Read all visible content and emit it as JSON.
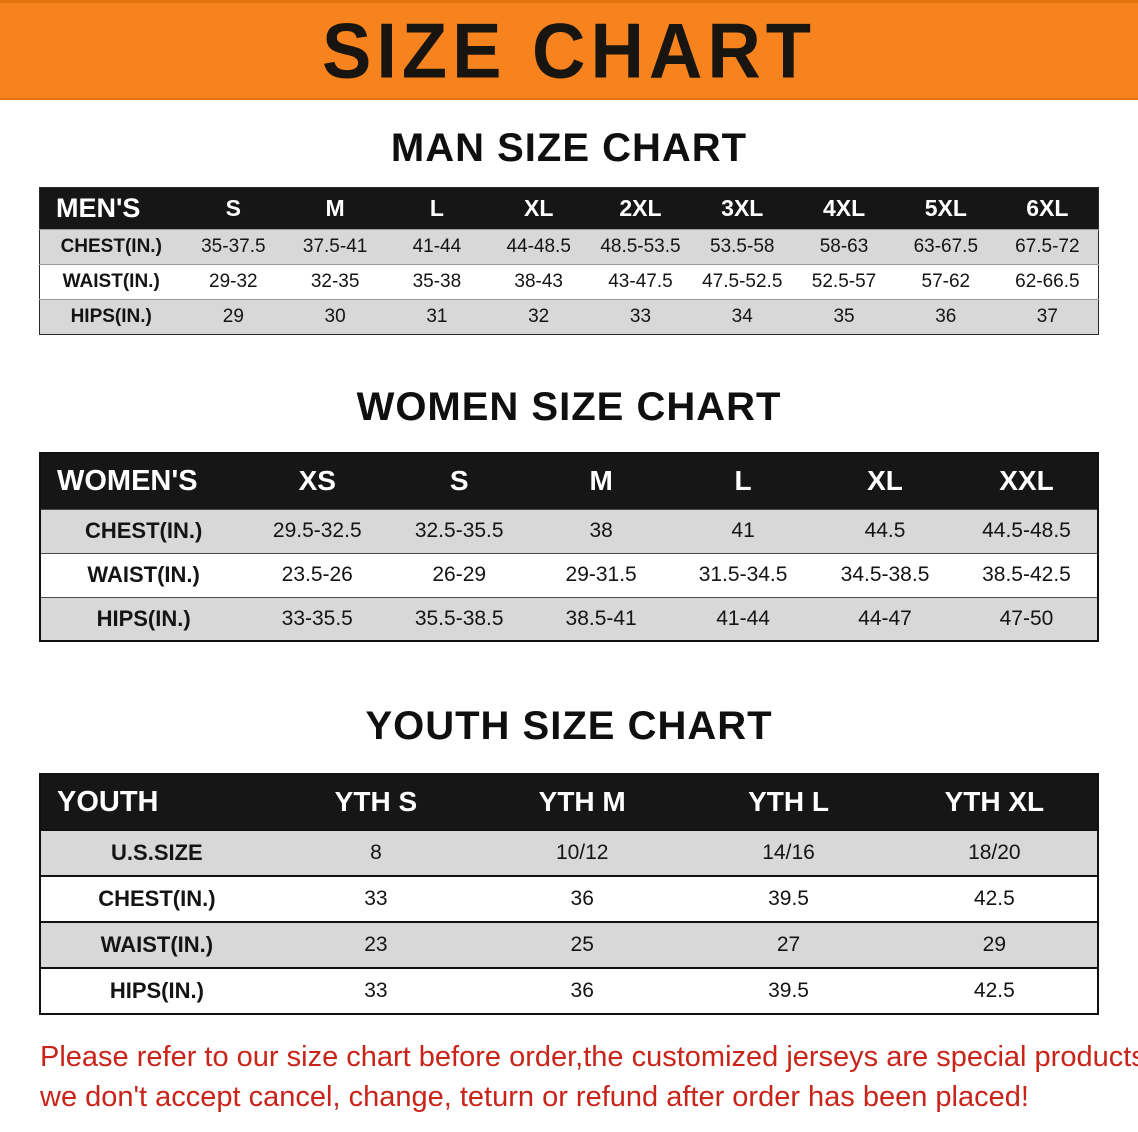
{
  "banner": {
    "title": "SIZE CHART"
  },
  "sections": [
    {
      "title": "MAN SIZE CHART",
      "table": {
        "header": [
          "MEN'S",
          "S",
          "M",
          "L",
          "XL",
          "2XL",
          "3XL",
          "4XL",
          "5XL",
          "6XL"
        ],
        "rows": [
          [
            "CHEST(IN.)",
            "35-37.5",
            "37.5-41",
            "41-44",
            "44-48.5",
            "48.5-53.5",
            "53.5-58",
            "58-63",
            "63-67.5",
            "67.5-72"
          ],
          [
            "WAIST(IN.)",
            "29-32",
            "32-35",
            "35-38",
            "38-43",
            "43-47.5",
            "47.5-52.5",
            "52.5-57",
            "57-62",
            "62-66.5"
          ],
          [
            "HIPS(IN.)",
            "29",
            "30",
            "31",
            "32",
            "33",
            "34",
            "35",
            "36",
            "37"
          ]
        ]
      }
    },
    {
      "title": "WOMEN SIZE CHART",
      "table": {
        "header": [
          "WOMEN'S",
          "XS",
          "S",
          "M",
          "L",
          "XL",
          "XXL"
        ],
        "rows": [
          [
            "CHEST(IN.)",
            "29.5-32.5",
            "32.5-35.5",
            "38",
            "41",
            "44.5",
            "44.5-48.5"
          ],
          [
            "WAIST(IN.)",
            "23.5-26",
            "26-29",
            "29-31.5",
            "31.5-34.5",
            "34.5-38.5",
            "38.5-42.5"
          ],
          [
            "HIPS(IN.)",
            "33-35.5",
            "35.5-38.5",
            "38.5-41",
            "41-44",
            "44-47",
            "47-50"
          ]
        ]
      }
    },
    {
      "title": "YOUTH SIZE CHART",
      "table": {
        "header": [
          "YOUTH",
          "YTH S",
          "YTH M",
          "YTH L",
          "YTH XL"
        ],
        "rows": [
          [
            "U.S.SIZE",
            "8",
            "10/12",
            "14/16",
            "18/20"
          ],
          [
            "CHEST(IN.)",
            "33",
            "36",
            "39.5",
            "42.5"
          ],
          [
            "WAIST(IN.)",
            "23",
            "25",
            "27",
            "29"
          ],
          [
            "HIPS(IN.)",
            "33",
            "36",
            "39.5",
            "42.5"
          ]
        ]
      }
    }
  ],
  "footer": {
    "line1": "Please refer to our size chart before order,the customized jerseys are special products,",
    "line2": "we don't accept cancel, change, teturn or refund after order has been placed!"
  },
  "colors": {
    "banner_bg": "#f6831d",
    "header_bg": "#161616",
    "row_alt_bg": "#d8d8d8",
    "footer_text": "#c9241a"
  }
}
